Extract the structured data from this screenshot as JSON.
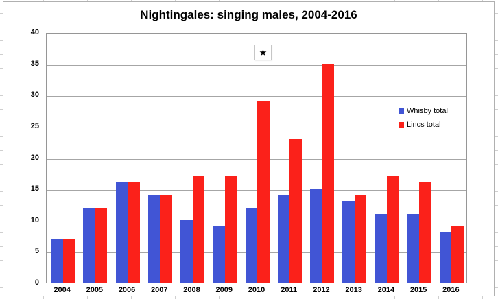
{
  "title": "Nightingales: singing males, 2004-2016",
  "annotation": {
    "symbol": "★"
  },
  "colors": {
    "whisby_blue": "#4155d5",
    "lincs_red": "#fb211a",
    "gridline": "#a6a6a6",
    "plot_border": "#969696",
    "chart_border": "#b0b0b0"
  },
  "chart_data": {
    "type": "bar",
    "title": "Nightingales: singing males, 2004-2016",
    "categories": [
      "2004",
      "2005",
      "2006",
      "2007",
      "2008",
      "2009",
      "2010",
      "2011",
      "2012",
      "2013",
      "2014",
      "2015",
      "2016"
    ],
    "series": [
      {
        "name": "Whisby total",
        "color": "#4155d5",
        "values": [
          7,
          12,
          16,
          14,
          10,
          9,
          12,
          14,
          15,
          13,
          11,
          11,
          8
        ]
      },
      {
        "name": "Lincs total",
        "color": "#fb211a",
        "values": [
          7,
          12,
          16,
          14,
          17,
          17,
          29,
          23,
          35,
          14,
          17,
          16,
          9
        ]
      }
    ],
    "xlabel": "",
    "ylabel": "",
    "ylim": [
      0,
      40
    ],
    "yticks": [
      0,
      5,
      10,
      15,
      20,
      25,
      30,
      35,
      40
    ],
    "grid": "horizontal",
    "legend_position": "inside-right"
  }
}
